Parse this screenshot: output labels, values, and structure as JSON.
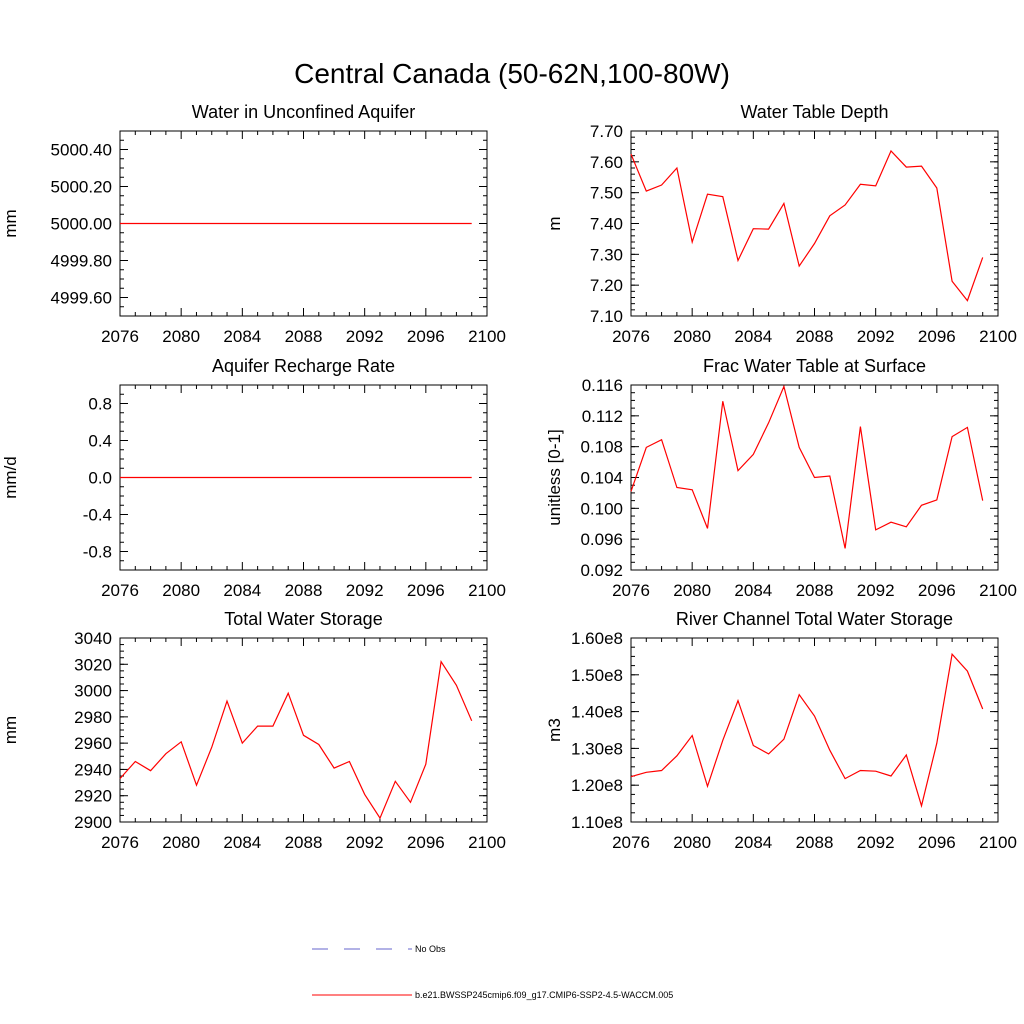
{
  "title": "Central Canada (50-62N,100-80W)",
  "chart_data": [
    {
      "type": "line",
      "title": "Water in Unconfined Aquifer",
      "ylabel": "mm",
      "xlim": [
        2076,
        2100
      ],
      "ylim": [
        4999.5,
        5000.5
      ],
      "xticks": [
        2076,
        2080,
        2084,
        2088,
        2092,
        2096,
        2100
      ],
      "xtick_labels": [
        "2076",
        "2080",
        "2084",
        "2088",
        "2092",
        "2096",
        "2100"
      ],
      "yticks": [
        4999.6,
        4999.8,
        5000.0,
        5000.2,
        5000.4
      ],
      "ytick_labels": [
        "4999.60",
        "4999.80",
        "5000.00",
        "5000.20",
        "5000.40"
      ],
      "yminor_step": 0.05,
      "x": [
        2076,
        2077,
        2078,
        2079,
        2080,
        2081,
        2082,
        2083,
        2084,
        2085,
        2086,
        2087,
        2088,
        2089,
        2090,
        2091,
        2092,
        2093,
        2094,
        2095,
        2096,
        2097,
        2098,
        2099
      ],
      "values": [
        5000,
        5000,
        5000,
        5000,
        5000,
        5000,
        5000,
        5000,
        5000,
        5000,
        5000,
        5000,
        5000,
        5000,
        5000,
        5000,
        5000,
        5000,
        5000,
        5000,
        5000,
        5000,
        5000,
        5000
      ]
    },
    {
      "type": "line",
      "title": "Water Table Depth",
      "ylabel": "m",
      "xlim": [
        2076,
        2100
      ],
      "ylim": [
        7.1,
        7.7
      ],
      "xticks": [
        2076,
        2080,
        2084,
        2088,
        2092,
        2096,
        2100
      ],
      "xtick_labels": [
        "2076",
        "2080",
        "2084",
        "2088",
        "2092",
        "2096",
        "2100"
      ],
      "yticks": [
        7.1,
        7.2,
        7.3,
        7.4,
        7.5,
        7.6,
        7.7
      ],
      "ytick_labels": [
        "7.10",
        "7.20",
        "7.30",
        "7.40",
        "7.50",
        "7.60",
        "7.70"
      ],
      "yminor_step": 0.02,
      "x": [
        2076,
        2077,
        2078,
        2079,
        2080,
        2081,
        2082,
        2083,
        2084,
        2085,
        2086,
        2087,
        2088,
        2089,
        2090,
        2091,
        2092,
        2093,
        2094,
        2095,
        2096,
        2097,
        2098,
        2099
      ],
      "values": [
        7.625,
        7.505,
        7.525,
        7.58,
        7.34,
        7.495,
        7.487,
        7.28,
        7.383,
        7.382,
        7.465,
        7.262,
        7.335,
        7.425,
        7.46,
        7.527,
        7.522,
        7.635,
        7.583,
        7.586,
        7.515,
        7.213,
        7.15,
        7.29
      ]
    },
    {
      "type": "line",
      "title": "Aquifer Recharge Rate",
      "ylabel": "mm/d",
      "xlim": [
        2076,
        2100
      ],
      "ylim": [
        -1.0,
        1.0
      ],
      "xticks": [
        2076,
        2080,
        2084,
        2088,
        2092,
        2096,
        2100
      ],
      "xtick_labels": [
        "2076",
        "2080",
        "2084",
        "2088",
        "2092",
        "2096",
        "2100"
      ],
      "yticks": [
        -0.8,
        -0.4,
        0.0,
        0.4,
        0.8
      ],
      "ytick_labels": [
        "-0.8",
        "-0.4",
        "0.0",
        "0.4",
        "0.8"
      ],
      "yminor_step": 0.1,
      "x": [
        2076,
        2077,
        2078,
        2079,
        2080,
        2081,
        2082,
        2083,
        2084,
        2085,
        2086,
        2087,
        2088,
        2089,
        2090,
        2091,
        2092,
        2093,
        2094,
        2095,
        2096,
        2097,
        2098,
        2099
      ],
      "values": [
        0,
        0,
        0,
        0,
        0,
        0,
        0,
        0,
        0,
        0,
        0,
        0,
        0,
        0,
        0,
        0,
        0,
        0,
        0,
        0,
        0,
        0,
        0,
        0
      ]
    },
    {
      "type": "line",
      "title": "Frac Water Table at Surface",
      "ylabel": "unitless [0-1]",
      "xlim": [
        2076,
        2100
      ],
      "ylim": [
        0.092,
        0.116
      ],
      "xticks": [
        2076,
        2080,
        2084,
        2088,
        2092,
        2096,
        2100
      ],
      "xtick_labels": [
        "2076",
        "2080",
        "2084",
        "2088",
        "2092",
        "2096",
        "2100"
      ],
      "yticks": [
        0.092,
        0.096,
        0.1,
        0.104,
        0.108,
        0.112,
        0.116
      ],
      "ytick_labels": [
        "0.092",
        "0.096",
        "0.100",
        "0.104",
        "0.108",
        "0.112",
        "0.116"
      ],
      "yminor_step": 0.001,
      "x": [
        2076,
        2077,
        2078,
        2079,
        2080,
        2081,
        2082,
        2083,
        2084,
        2085,
        2086,
        2087,
        2088,
        2089,
        2090,
        2091,
        2092,
        2093,
        2094,
        2095,
        2096,
        2097,
        2098,
        2099
      ],
      "values": [
        0.1022,
        0.1079,
        0.1089,
        0.1027,
        0.1024,
        0.0974,
        0.1139,
        0.1049,
        0.107,
        0.1111,
        0.1158,
        0.1079,
        0.104,
        0.1042,
        0.0948,
        0.1106,
        0.0972,
        0.0982,
        0.0976,
        0.1004,
        0.1011,
        0.1093,
        0.1105,
        0.101
      ]
    },
    {
      "type": "line",
      "title": "Total Water Storage",
      "ylabel": "mm",
      "xlim": [
        2076,
        2100
      ],
      "ylim": [
        2900,
        3040
      ],
      "xticks": [
        2076,
        2080,
        2084,
        2088,
        2092,
        2096,
        2100
      ],
      "xtick_labels": [
        "2076",
        "2080",
        "2084",
        "2088",
        "2092",
        "2096",
        "2100"
      ],
      "yticks": [
        2900,
        2920,
        2940,
        2960,
        2980,
        3000,
        3020,
        3040
      ],
      "ytick_labels": [
        "2900",
        "2920",
        "2940",
        "2960",
        "2980",
        "3000",
        "3020",
        "3040"
      ],
      "yminor_step": 5,
      "x": [
        2076,
        2077,
        2078,
        2079,
        2080,
        2081,
        2082,
        2083,
        2084,
        2085,
        2086,
        2087,
        2088,
        2089,
        2090,
        2091,
        2092,
        2093,
        2094,
        2095,
        2096,
        2097,
        2098,
        2099
      ],
      "values": [
        2933,
        2946,
        2939,
        2952,
        2961,
        2928,
        2957,
        2992,
        2960,
        2973,
        2973,
        2998,
        2966,
        2959,
        2941,
        2946,
        2921,
        2903,
        2931,
        2915,
        2944,
        3022,
        3004,
        2977
      ]
    },
    {
      "type": "line",
      "title": "River Channel Total Water Storage",
      "ylabel": "m3",
      "xlim": [
        2076,
        2100
      ],
      "ylim": [
        110000000,
        160000000
      ],
      "xticks": [
        2076,
        2080,
        2084,
        2088,
        2092,
        2096,
        2100
      ],
      "xtick_labels": [
        "2076",
        "2080",
        "2084",
        "2088",
        "2092",
        "2096",
        "2100"
      ],
      "yticks": [
        110000000,
        120000000,
        130000000,
        140000000,
        150000000,
        160000000
      ],
      "ytick_labels": [
        "1.10e8",
        "1.20e8",
        "1.30e8",
        "1.40e8",
        "1.50e8",
        "1.60e8"
      ],
      "yminor_step": 2500000,
      "x": [
        2076,
        2077,
        2078,
        2079,
        2080,
        2081,
        2082,
        2083,
        2084,
        2085,
        2086,
        2087,
        2088,
        2089,
        2090,
        2091,
        2092,
        2093,
        2094,
        2095,
        2096,
        2097,
        2098,
        2099
      ],
      "values": [
        122300000,
        123500000,
        124000000,
        128000000,
        133500000,
        119700000,
        132200000,
        143000000,
        130800000,
        128500000,
        132500000,
        144600000,
        138800000,
        129500000,
        121800000,
        124000000,
        123800000,
        122500000,
        128200000,
        114400000,
        131400000,
        155600000,
        151000000,
        140700000
      ]
    }
  ],
  "legend": [
    {
      "label": "No Obs",
      "color": "#6666cc",
      "style": "dashed"
    },
    {
      "label": "b.e21.BWSSP245cmip6.f09_g17.CMIP6-SSP2-4.5-WACCM.005",
      "color": "#ff0000",
      "style": "solid"
    }
  ]
}
